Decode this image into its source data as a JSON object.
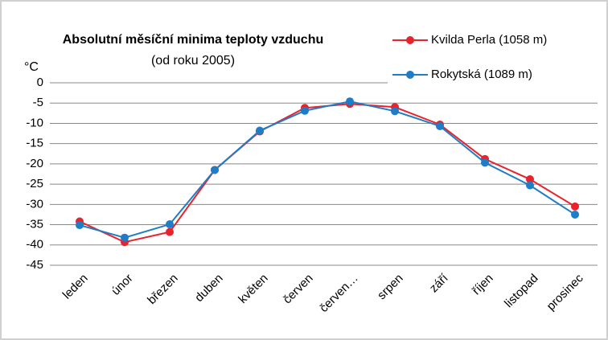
{
  "chart_data": {
    "type": "line",
    "title": "Absolutní měsíční minima teploty vzduchu",
    "subtitle": "(od roku 2005)",
    "y_label": "°C",
    "categories": [
      "leden",
      "únor",
      "březen",
      "duben",
      "květen",
      "červen",
      "červen…",
      "srpen",
      "září",
      "říjen",
      "listopad",
      "prosinec"
    ],
    "series": [
      {
        "name": "Kvilda Perla (1058 m)",
        "color": "#e8232b",
        "values": [
          -34.2,
          -39.3,
          -36.8,
          -21.5,
          -12,
          -6.2,
          -5.2,
          -6,
          -10.3,
          -18.8,
          -23.8,
          -30.5
        ]
      },
      {
        "name": "Rokytská (1089 m)",
        "color": "#1f7cc7",
        "values": [
          -35.1,
          -38.2,
          -34.9,
          -21.5,
          -11.8,
          -6.9,
          -4.6,
          -7,
          -10.7,
          -19.7,
          -25.3,
          -32.5
        ]
      }
    ],
    "ylim": [
      -45,
      0
    ],
    "yticks": [
      0,
      -5,
      -10,
      -15,
      -20,
      -25,
      -30,
      -35,
      -40,
      -45
    ],
    "grid": true,
    "legend": "top-right"
  }
}
